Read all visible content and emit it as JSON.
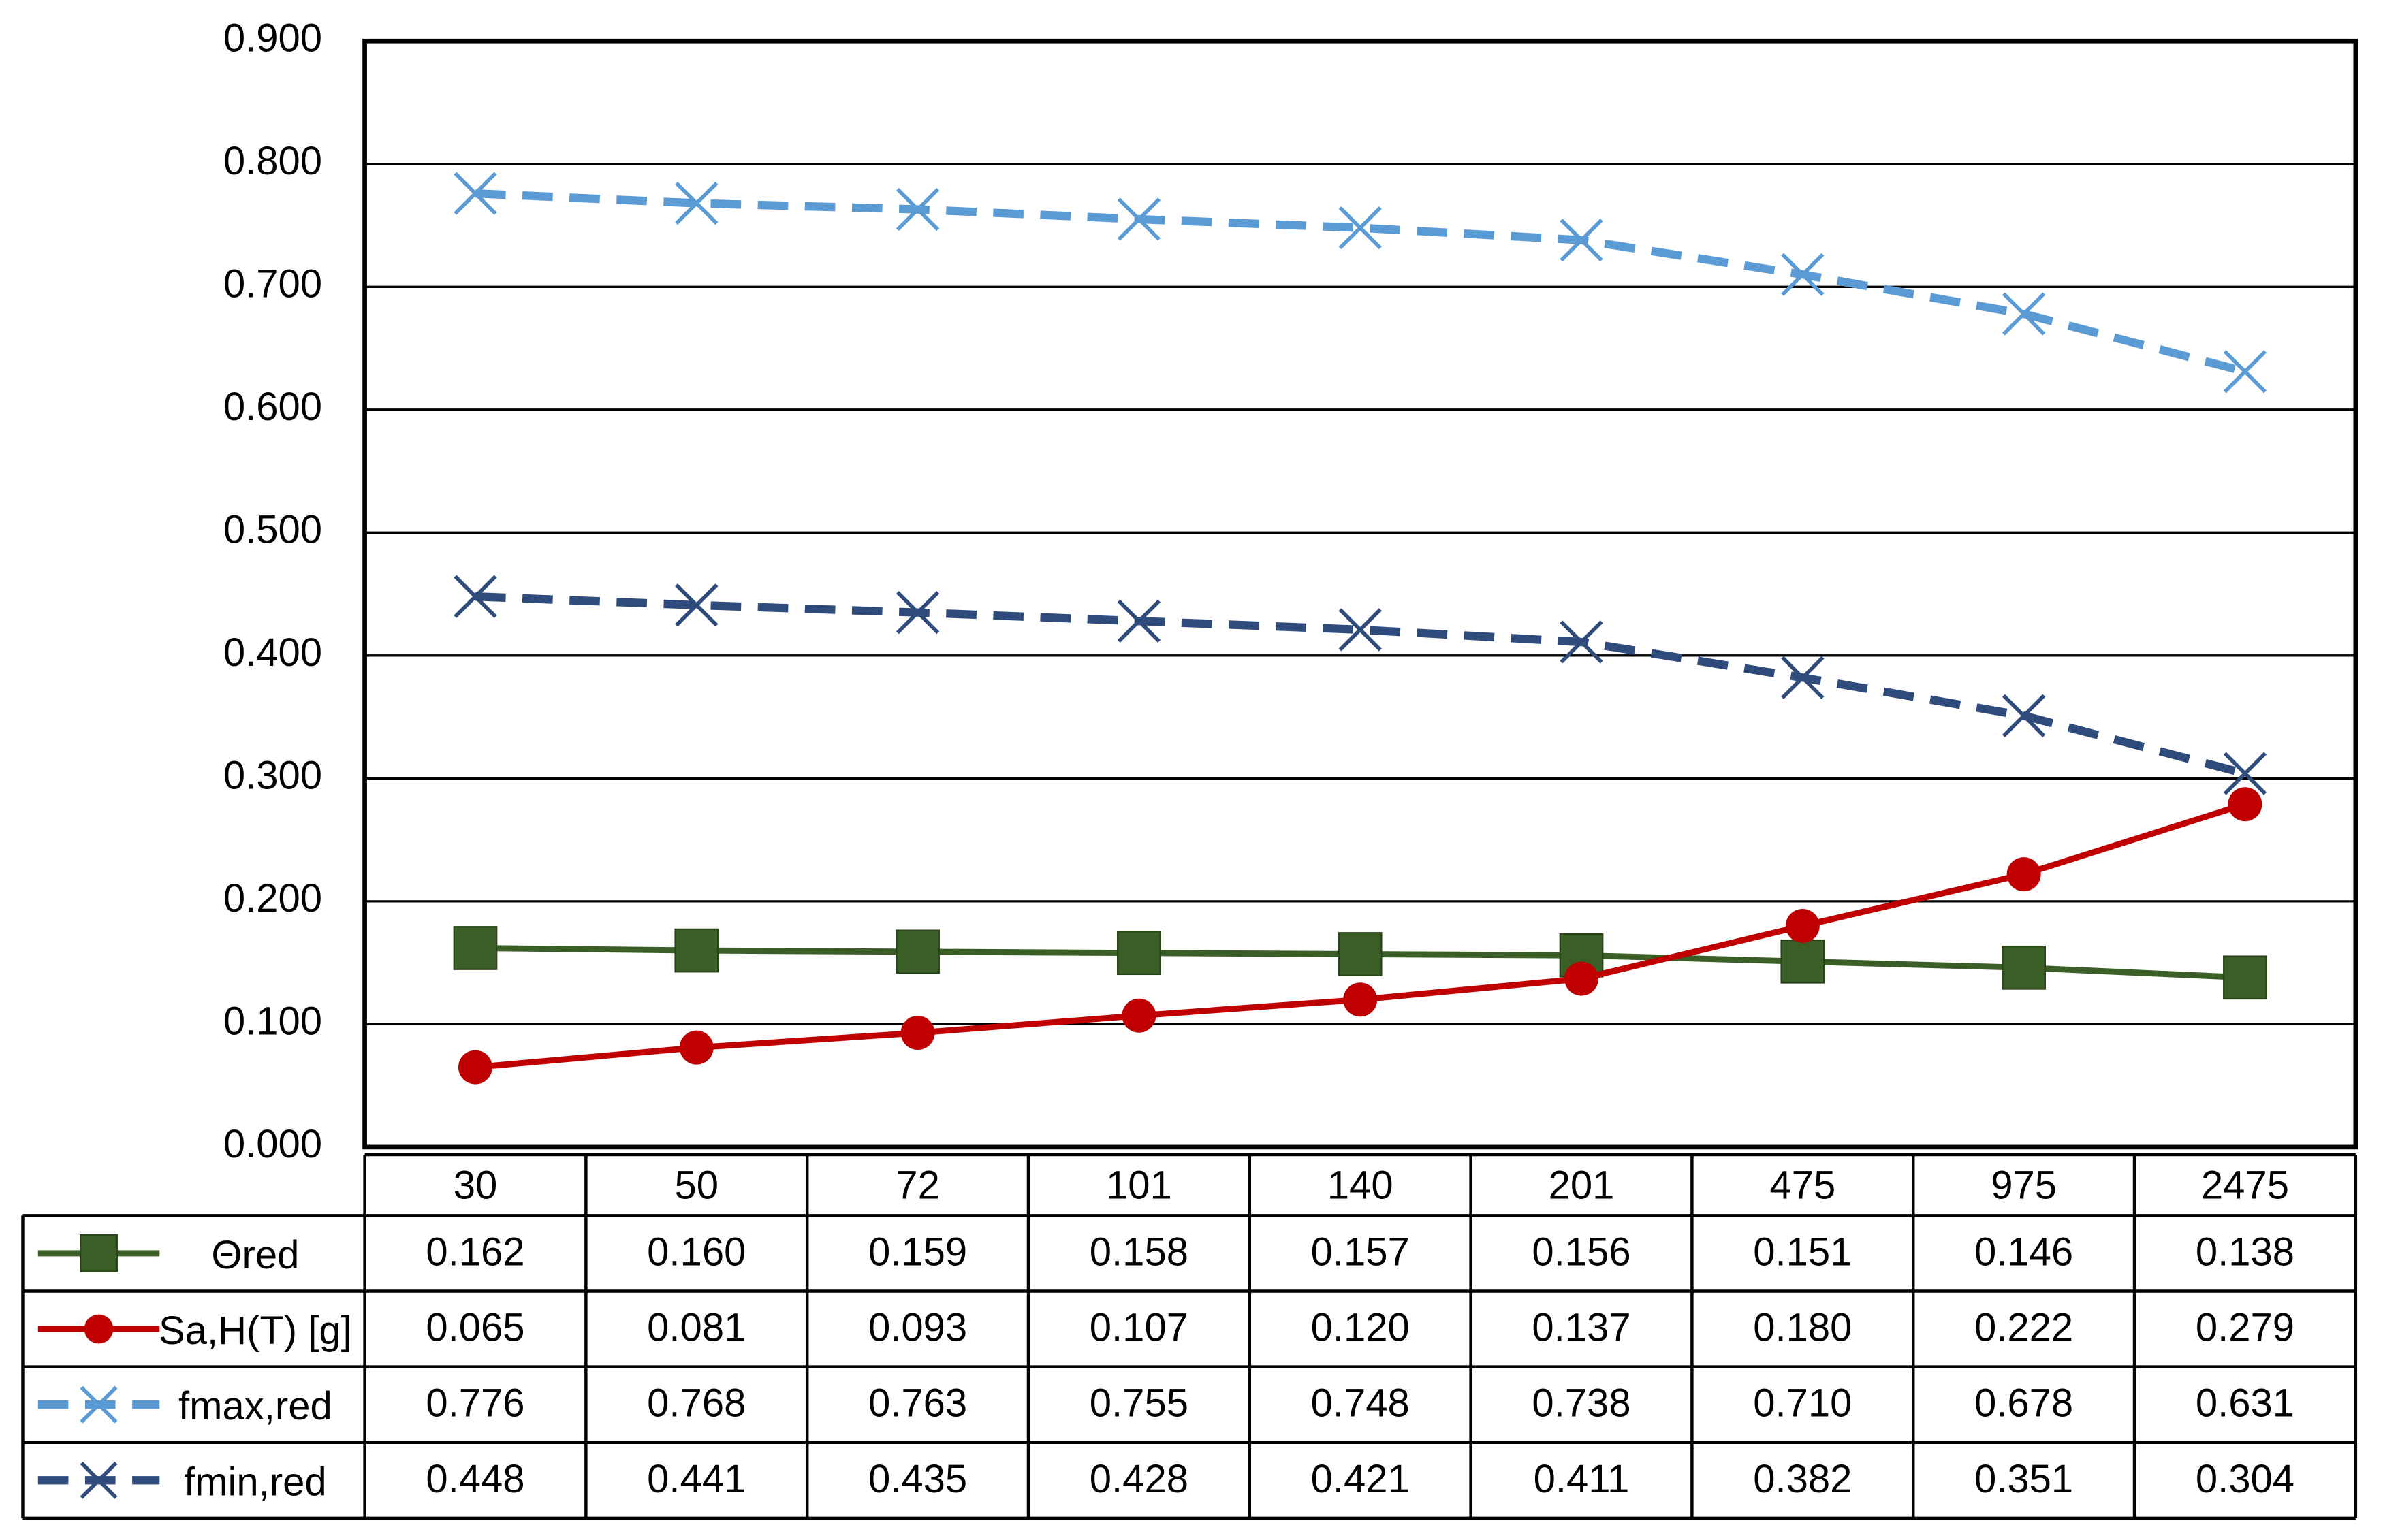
{
  "chart_data": {
    "type": "line",
    "categories": [
      "30",
      "50",
      "72",
      "101",
      "140",
      "201",
      "475",
      "975",
      "2475"
    ],
    "ylim": [
      0,
      0.9
    ],
    "yticks": [
      {
        "value": 0,
        "label": "0.000"
      },
      {
        "value": 0.1,
        "label": "0.100"
      },
      {
        "value": 0.2,
        "label": "0.200"
      },
      {
        "value": 0.3,
        "label": "0.300"
      },
      {
        "value": 0.4,
        "label": "0.400"
      },
      {
        "value": 0.5,
        "label": "0.500"
      },
      {
        "value": 0.6,
        "label": "0.600"
      },
      {
        "value": 0.7,
        "label": "0.700"
      },
      {
        "value": 0.8,
        "label": "0.800"
      },
      {
        "value": 0.9,
        "label": "0.900"
      }
    ],
    "grid": true,
    "series": [
      {
        "name": "Θred",
        "color": "#3b5e27",
        "marker": "square",
        "dashed": false,
        "values": [
          0.162,
          0.16,
          0.159,
          0.158,
          0.157,
          0.156,
          0.151,
          0.146,
          0.138
        ],
        "value_labels": [
          "0.162",
          "0.160",
          "0.159",
          "0.158",
          "0.157",
          "0.156",
          "0.151",
          "0.146",
          "0.138"
        ]
      },
      {
        "name": "Sa,H(T) [g]",
        "color": "#c00000",
        "marker": "circle",
        "dashed": false,
        "values": [
          0.065,
          0.081,
          0.093,
          0.107,
          0.12,
          0.137,
          0.18,
          0.222,
          0.279
        ],
        "value_labels": [
          "0.065",
          "0.081",
          "0.093",
          "0.107",
          "0.120",
          "0.137",
          "0.180",
          "0.222",
          "0.279"
        ]
      },
      {
        "name": "fmax,red",
        "color": "#5b9bd5",
        "marker": "x",
        "dashed": true,
        "values": [
          0.776,
          0.768,
          0.763,
          0.755,
          0.748,
          0.738,
          0.71,
          0.678,
          0.631
        ],
        "value_labels": [
          "0.776",
          "0.768",
          "0.763",
          "0.755",
          "0.748",
          "0.738",
          "0.710",
          "0.678",
          "0.631"
        ]
      },
      {
        "name": "fmin,red",
        "color": "#2f4b7c",
        "marker": "x",
        "dashed": true,
        "values": [
          0.448,
          0.441,
          0.435,
          0.428,
          0.421,
          0.411,
          0.382,
          0.351,
          0.304
        ],
        "value_labels": [
          "0.448",
          "0.441",
          "0.435",
          "0.428",
          "0.421",
          "0.411",
          "0.382",
          "0.351",
          "0.304"
        ]
      }
    ]
  }
}
